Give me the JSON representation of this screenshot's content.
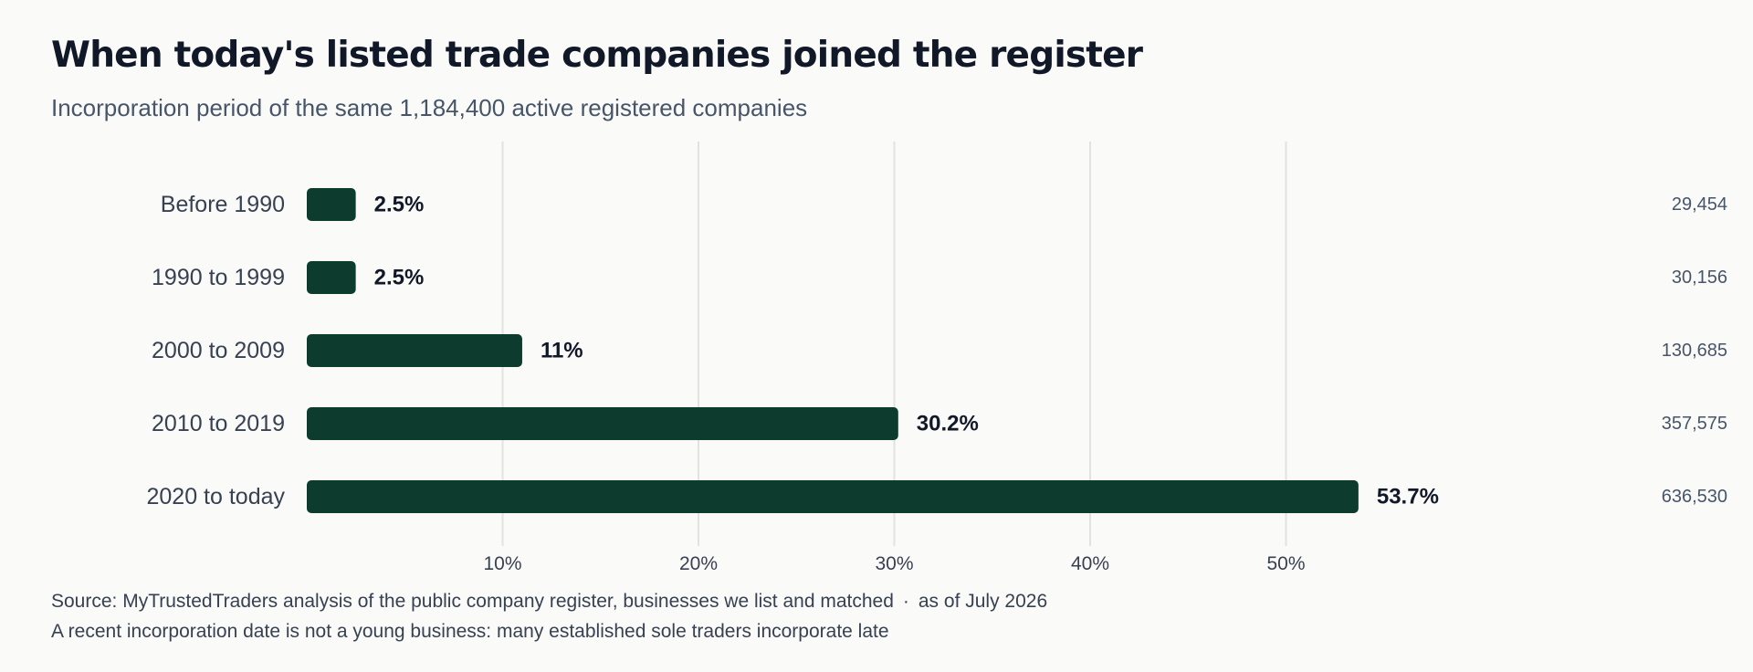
{
  "title": "When today's listed trade companies joined the register",
  "subtitle": "Incorporation period of the same 1,184,400 active registered companies",
  "footer": {
    "source": "Source: MyTrustedTraders analysis of the public company register, businesses we list and matched",
    "separator": "·",
    "as_of": "as of July 2026",
    "note": "A recent incorporation date is not a young business: many established sole traders incorporate late"
  },
  "colors": {
    "bar": "#0d3b2e",
    "grid": "#e2e2e2",
    "label": "#374151",
    "value": "#111827",
    "count": "#475569"
  },
  "chart_data": {
    "type": "bar",
    "orientation": "horizontal",
    "categories": [
      "Before 1990",
      "1990 to 1999",
      "2000 to 2009",
      "2010 to 2019",
      "2020 to today"
    ],
    "values": [
      2.5,
      2.5,
      11,
      30.2,
      53.7
    ],
    "value_labels": [
      "2.5%",
      "2.5%",
      "11%",
      "30.2%",
      "53.7%"
    ],
    "counts": [
      "29,454",
      "30,156",
      "130,685",
      "357,575",
      "636,530"
    ],
    "xticks": [
      10,
      20,
      30,
      40,
      50
    ],
    "xtick_labels": [
      "10%",
      "20%",
      "30%",
      "40%",
      "50%"
    ],
    "xlim": [
      0,
      57.5
    ],
    "grid": true
  }
}
